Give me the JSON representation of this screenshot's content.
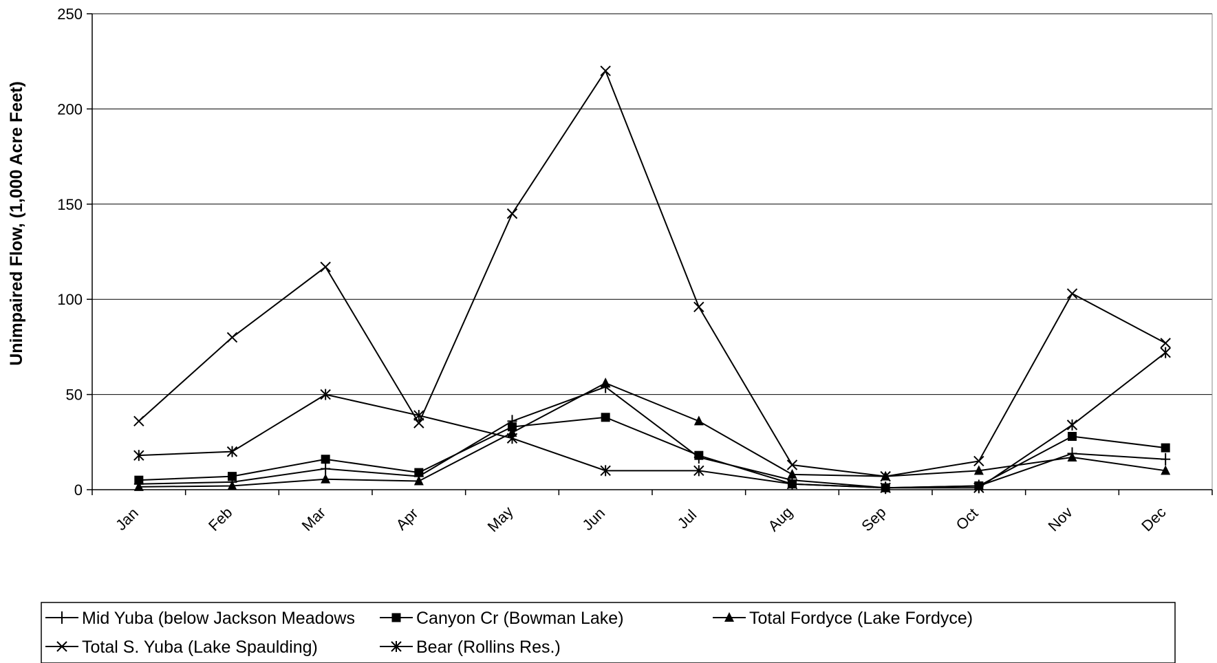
{
  "chart_data": {
    "type": "line",
    "title": "",
    "xlabel": "",
    "ylabel": "Unimpaired Flow, (1,000 Acre Feet)",
    "ylim": [
      0,
      250
    ],
    "yticks": [
      0,
      50,
      100,
      150,
      200,
      250
    ],
    "grid": true,
    "legend_position": "bottom",
    "categories": [
      "Jan",
      "Feb",
      "Mar",
      "Apr",
      "May",
      "Jun",
      "Jul",
      "Aug",
      "Sep",
      "Oct",
      "Nov",
      "Dec"
    ],
    "series": [
      {
        "name": "Mid Yuba (below Jackson Meadows",
        "marker": "plus",
        "values": [
          3,
          4,
          11,
          7,
          36,
          54,
          17,
          5,
          1,
          2,
          19,
          16
        ]
      },
      {
        "name": "Canyon Cr (Bowman Lake)",
        "marker": "square",
        "values": [
          5,
          7,
          16,
          9,
          33,
          38,
          18,
          3,
          1,
          2,
          28,
          22
        ]
      },
      {
        "name": "Total Fordyce (Lake Fordyce)",
        "marker": "triangle",
        "values": [
          1.5,
          2,
          5.5,
          4.5,
          30,
          56,
          36,
          8,
          7,
          10,
          17,
          10
        ]
      },
      {
        "name": "Total S. Yuba (Lake Spaulding)",
        "marker": "x",
        "values": [
          36,
          80,
          117,
          35,
          145,
          220,
          96,
          13,
          7,
          15,
          103,
          77
        ]
      },
      {
        "name": "Bear (Rollins Res.)",
        "marker": "star",
        "values": [
          18,
          20,
          50,
          39,
          27,
          10,
          10,
          3,
          1,
          1,
          34,
          72
        ]
      }
    ]
  }
}
